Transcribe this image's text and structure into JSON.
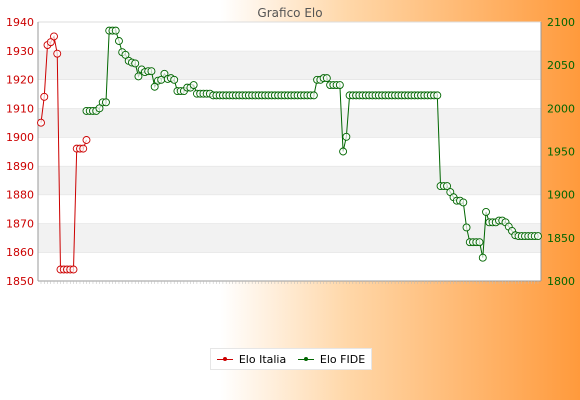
{
  "chart_data": {
    "type": "line",
    "title": "Grafico Elo",
    "left_axis": {
      "ylim": [
        1850,
        1940
      ],
      "ticks": [
        1850,
        1860,
        1870,
        1880,
        1890,
        1900,
        1910,
        1920,
        1930,
        1940
      ],
      "color": "#cc0000"
    },
    "right_axis": {
      "ylim": [
        1800,
        2100
      ],
      "ticks": [
        1800,
        1850,
        1900,
        1950,
        2000,
        2050,
        2100
      ],
      "color": "#006600"
    },
    "grid": "horizontal-bands",
    "legend_position": "bottom-center",
    "series": [
      {
        "name": "Elo Italia",
        "axis": "left",
        "color": "#cc0000",
        "values": [
          1905,
          1914,
          1932,
          1933,
          1935,
          1929,
          1854,
          1854,
          1854,
          1854,
          1854,
          1896,
          1896,
          1896,
          1899
        ]
      },
      {
        "name": "Elo FIDE",
        "axis": "right",
        "color": "#006600",
        "start_index": 14,
        "values": [
          1997,
          1997,
          1997,
          1997,
          2000,
          2007,
          2007,
          2090,
          2090,
          2090,
          2078,
          2065,
          2062,
          2055,
          2053,
          2052,
          2037,
          2045,
          2042,
          2043,
          2043,
          2025,
          2032,
          2033,
          2040,
          2034,
          2035,
          2033,
          2020,
          2020,
          2020,
          2024,
          2024,
          2027,
          2017,
          2017,
          2017,
          2017,
          2017,
          2015,
          2015,
          2015,
          2015,
          2015,
          2015,
          2015,
          2015,
          2015,
          2015,
          2015,
          2015,
          2015,
          2015,
          2015,
          2015,
          2015,
          2015,
          2015,
          2015,
          2015,
          2015,
          2015,
          2015,
          2015,
          2015,
          2015,
          2015,
          2015,
          2015,
          2015,
          2015,
          2033,
          2033,
          2035,
          2035,
          2027,
          2027,
          2027,
          2027,
          1950,
          1967,
          2015,
          2015,
          2015,
          2015,
          2015,
          2015,
          2015,
          2015,
          2015,
          2015,
          2015,
          2015,
          2015,
          2015,
          2015,
          2015,
          2015,
          2015,
          2015,
          2015,
          2015,
          2015,
          2015,
          2015,
          2015,
          2015,
          2015,
          2015,
          1910,
          1910,
          1910,
          1903,
          1897,
          1893,
          1893,
          1891,
          1862,
          1845,
          1845,
          1845,
          1845,
          1827,
          1880,
          1868,
          1868,
          1868,
          1870,
          1870,
          1868,
          1863,
          1858,
          1853,
          1852,
          1852,
          1852,
          1852,
          1852,
          1852,
          1852
        ]
      }
    ]
  },
  "legend": {
    "elo_italia": "Elo Italia",
    "elo_fide": "Elo FIDE"
  }
}
